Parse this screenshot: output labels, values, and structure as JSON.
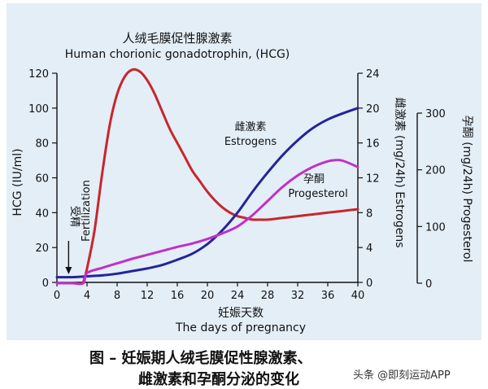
{
  "chart_data": {
    "type": "line",
    "title": "人绒毛膜促性腺激素",
    "subtitle": "Human chorionic gonadotrophin, (HCG)",
    "xlabel": "妊娠天数",
    "xlabel_en": "The days of pregnancy",
    "xlim": [
      0,
      40
    ],
    "x_ticks": [
      "0",
      "4",
      "8",
      "12",
      "16",
      "20",
      "24",
      "28",
      "32",
      "36",
      "40"
    ],
    "axes": {
      "hcg": {
        "label": "HCG (IU/ml)",
        "ylim": [
          0,
          120
        ],
        "ticks": [
          "0",
          "20",
          "40",
          "60",
          "80",
          "100",
          "120"
        ],
        "position": "left"
      },
      "estrogens": {
        "label": "雌激素 (mg/24h) Estrogens",
        "ylim": [
          0,
          24
        ],
        "ticks": [
          "0",
          "4",
          "8",
          "12",
          "16",
          "20",
          "24"
        ],
        "position": "right"
      },
      "progesterol": {
        "label": "孕酮 (mg/24h) Progesterol",
        "ylim": [
          0,
          300
        ],
        "ticks": [
          "0",
          "100",
          "200",
          "300"
        ],
        "position": "far-right"
      }
    },
    "series": [
      {
        "name": "HCG",
        "axis": "hcg",
        "color": "#c8262c",
        "x": [
          3.5,
          4,
          5,
          6,
          7,
          8,
          9,
          10,
          11,
          12,
          13,
          14,
          15,
          16,
          17,
          18,
          19,
          20,
          21,
          22,
          23,
          24,
          25,
          26,
          27,
          28,
          30,
          32,
          34,
          36,
          38,
          40
        ],
        "values": [
          0,
          8,
          30,
          62,
          90,
          108,
          118,
          122,
          121,
          116,
          108,
          98,
          88,
          80,
          72,
          64,
          58,
          52,
          47,
          43,
          40,
          38,
          37,
          36,
          36,
          36,
          37,
          38,
          39,
          40,
          41,
          42
        ]
      },
      {
        "name": "雌激素 Estrogens",
        "axis": "estrogens",
        "color": "#24249a",
        "x": [
          0,
          2,
          4,
          6,
          8,
          10,
          12,
          14,
          16,
          18,
          20,
          22,
          24,
          26,
          28,
          30,
          32,
          34,
          36,
          38,
          40
        ],
        "values": [
          0.6,
          0.6,
          0.7,
          0.8,
          1.0,
          1.3,
          1.6,
          2.0,
          2.6,
          3.3,
          4.4,
          6.0,
          8.0,
          10.4,
          12.6,
          14.6,
          16.3,
          17.7,
          18.7,
          19.4,
          20.0
        ]
      },
      {
        "name": "孕酮 Progesterol",
        "axis": "progesterol",
        "color": "#c030c8",
        "x": [
          0,
          2,
          3.5,
          4,
          6,
          8,
          10,
          12,
          14,
          16,
          18,
          20,
          22,
          24,
          26,
          28,
          30,
          32,
          34,
          36,
          37,
          38,
          40
        ],
        "values": [
          0,
          0,
          0,
          18,
          27,
          35,
          43,
          50,
          57,
          64,
          70,
          78,
          88,
          100,
          120,
          145,
          170,
          190,
          205,
          215,
          217,
          216,
          205
        ]
      }
    ],
    "annotations": {
      "fertilization_cn": "受精",
      "fertilization_en": "Fertilization",
      "estrogens_cn": "雌激素",
      "estrogens_en": "Estrogens",
      "progesterol_cn": "孕酮",
      "progesterol_en": "Progesterol"
    },
    "grid": false,
    "legend": "none"
  },
  "caption": {
    "line1": "图  –  妊娠期人绒毛膜促性腺激素、",
    "line2": "雌激素和孕酮分泌的变化"
  },
  "watermark": "头条 @即刻运动APP",
  "colors": {
    "background": "#e3eef7",
    "hcg": "#c8262c",
    "estrogens": "#24249a",
    "progesterol": "#c030c8"
  }
}
